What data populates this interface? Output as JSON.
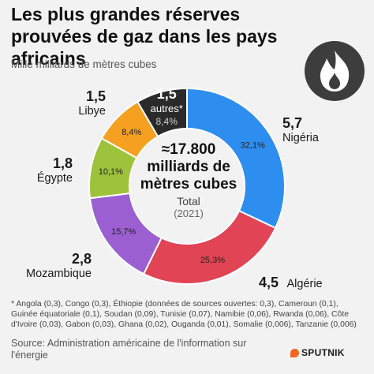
{
  "title": "Les plus grandes réserves prouvées de gaz dans les pays africains",
  "subtitle": "Mille milliards de mètres cubes",
  "center": {
    "value": "≈17.800",
    "unit": "milliards de mètres cubes",
    "label": "Total",
    "year": "(2021)"
  },
  "footnote": "* Angola (0,3), Congo (0,3), Éthiopie (données de sources ouvertes: 0,3), Cameroun (0,1), Guinée équatoriale (0,1), Soudan (0,09), Tunisie (0,07), Namibie (0,06), Rwanda (0,06), Côte d'Ivoire (0,03), Gabon (0,03), Ghana (0,02), Ouganda (0,01), Somalie (0,006), Tanzanie (0,006)",
  "source": "Source: Administration américaine de l'information sur l'énergie",
  "brand": "SPUTNIK",
  "icons": {
    "logo": "flame-icon",
    "brand": "sputnik-logo-icon"
  },
  "chart_data": {
    "type": "pie",
    "donut": true,
    "slices": [
      {
        "name": "Nigéria",
        "value": 5.7,
        "value_label": "5,7",
        "pct_label": "32,1%",
        "color": "#2e8ef0"
      },
      {
        "name": "Algérie",
        "value": 4.5,
        "value_label": "4,5",
        "pct_label": "25,3%",
        "color": "#e04455"
      },
      {
        "name": "Mozambique",
        "value": 2.8,
        "value_label": "2,8",
        "pct_label": "15,7%",
        "color": "#9b5fd1"
      },
      {
        "name": "Égypte",
        "value": 1.8,
        "value_label": "1,8",
        "pct_label": "10,1%",
        "color": "#9dc23c"
      },
      {
        "name": "Libye",
        "value": 1.5,
        "value_label": "1,5",
        "pct_label": "8,4%",
        "color": "#f5a020"
      },
      {
        "name": "autres*",
        "value": 1.5,
        "value_label": "1,5",
        "pct_label": "8,4%",
        "color": "#2a2a2a"
      }
    ]
  }
}
